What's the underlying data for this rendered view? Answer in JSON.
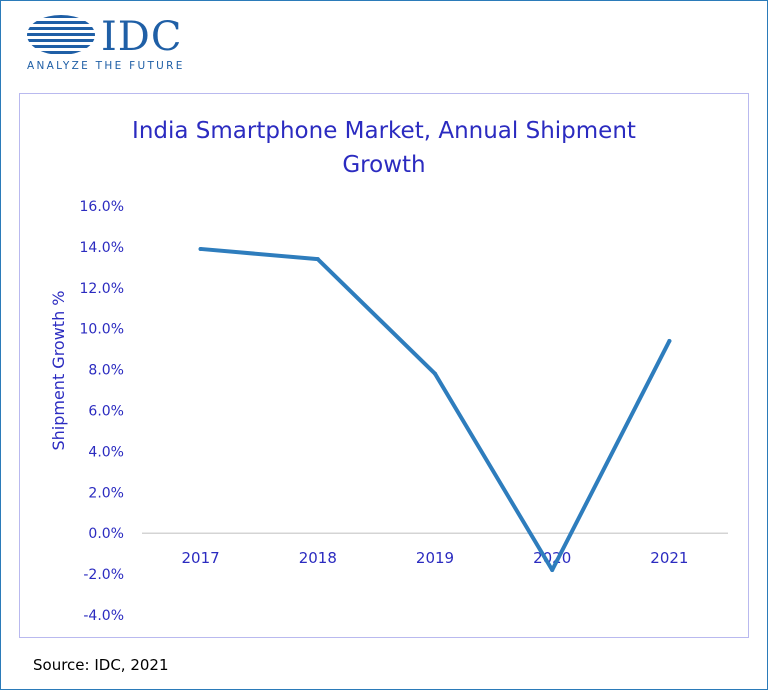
{
  "logo": {
    "wordmark": "IDC",
    "tagline": "ANALYZE THE FUTURE"
  },
  "source_note": "Source: IDC, 2021",
  "colors": {
    "text": "#2b2bc0",
    "line": "#2e7dbd",
    "brand": "#1f5fa6",
    "frame": "#2b7bb9",
    "plot_border": "#b9b9ef",
    "axis": "#d4d4d4"
  },
  "chart_data": {
    "type": "line",
    "title_lines": [
      "India Smartphone Market, Annual Shipment",
      "Growth"
    ],
    "xlabel": "",
    "ylabel": "Shipment Growth %",
    "categories": [
      "2017",
      "2018",
      "2019",
      "2020",
      "2021"
    ],
    "series": [
      {
        "values": [
          13.9,
          13.4,
          7.8,
          -1.8,
          9.4
        ]
      }
    ],
    "ylim": [
      -4.0,
      16.0
    ],
    "y_ticks": [
      "-4.0%",
      "-2.0%",
      "0.0%",
      "2.0%",
      "4.0%",
      "6.0%",
      "8.0%",
      "10.0%",
      "12.0%",
      "14.0%",
      "16.0%"
    ],
    "grid": false,
    "legend": "none"
  }
}
